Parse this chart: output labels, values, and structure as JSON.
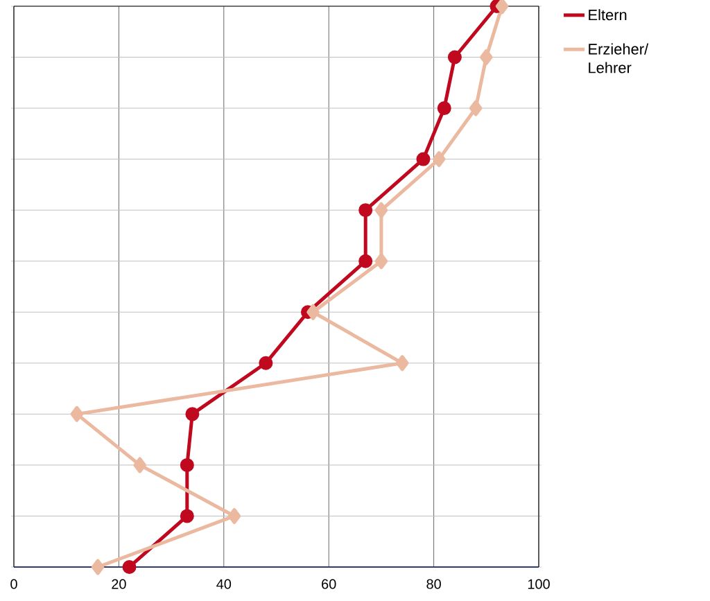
{
  "chart_data": {
    "type": "line",
    "orientation": "horizontal",
    "categories": [
      null,
      null,
      null,
      null,
      null,
      null,
      null,
      null,
      null,
      null,
      null,
      null
    ],
    "series": [
      {
        "name": "Eltern",
        "color": "#c0081f",
        "marker": "circle",
        "values": [
          92,
          84,
          82,
          78,
          67,
          67,
          56,
          48,
          34,
          33,
          33,
          22
        ]
      },
      {
        "name": "Erzieher/ Lehrer",
        "color": "#ebb8a0",
        "marker": "diamond",
        "values": [
          93,
          90,
          88,
          81,
          70,
          70,
          57,
          74,
          12,
          24,
          42,
          16
        ]
      }
    ],
    "xlim": [
      0,
      100
    ],
    "xticks": [
      0,
      20,
      40,
      60,
      80,
      100
    ],
    "grid": true,
    "legend": "right",
    "tick_labels": "x",
    "line_style": "solid"
  }
}
